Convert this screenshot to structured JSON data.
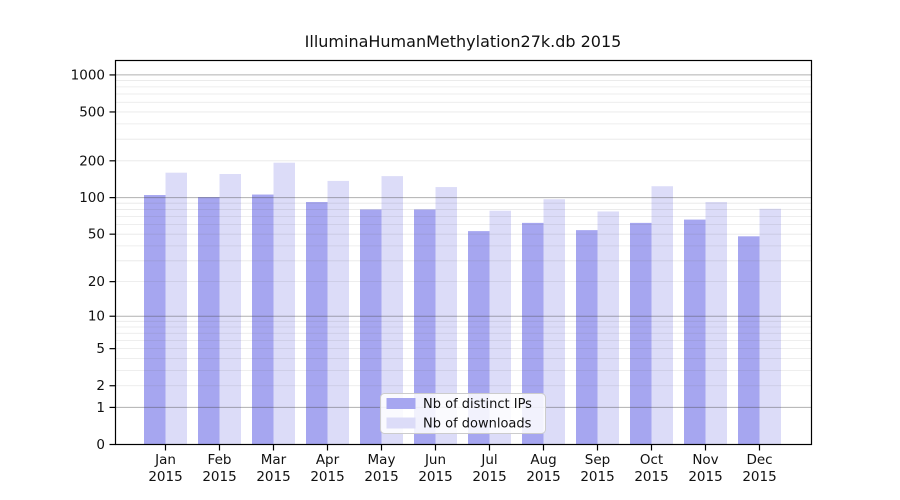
{
  "chart_data": {
    "type": "bar",
    "title": "IlluminaHumanMethylation27k.db 2015",
    "categories": [
      "Jan 2015",
      "Feb 2015",
      "Mar 2015",
      "Apr 2015",
      "May 2015",
      "Jun 2015",
      "Jul 2015",
      "Aug 2015",
      "Sep 2015",
      "Oct 2015",
      "Nov 2015",
      "Dec 2015"
    ],
    "series": [
      {
        "name": "Nb of distinct IPs",
        "color": "#a6a6f0",
        "values": [
          105,
          101,
          106,
          92,
          80,
          80,
          53,
          62,
          54,
          62,
          66,
          48
        ]
      },
      {
        "name": "Nb of downloads",
        "color": "#dcdcf8",
        "values": [
          160,
          156,
          193,
          137,
          150,
          122,
          78,
          97,
          77,
          124,
          92,
          81
        ]
      }
    ],
    "xlabel": "",
    "ylabel": "",
    "y_axis": {
      "scale": "log1p",
      "ticks": [
        0,
        1,
        2,
        5,
        10,
        20,
        50,
        100,
        200,
        500,
        1000
      ],
      "range_top": 1310
    },
    "ylim": [
      0,
      1310
    ],
    "grid": {
      "on": true,
      "major": [
        1,
        10,
        100,
        1000
      ],
      "minor": [
        2,
        3,
        4,
        5,
        6,
        7,
        8,
        9,
        20,
        30,
        40,
        50,
        60,
        70,
        80,
        90,
        200,
        300,
        400,
        500,
        600,
        700,
        800,
        900
      ]
    },
    "legend": {
      "position": "lower-center"
    }
  },
  "colors": {
    "frame": "#000000",
    "text": "#111111",
    "grid_major": "rgba(70,70,70,0.42)",
    "grid_minor": "rgba(100,100,100,0.15)",
    "legend_bg": "#ffffff",
    "legend_border": "#cccccc"
  }
}
